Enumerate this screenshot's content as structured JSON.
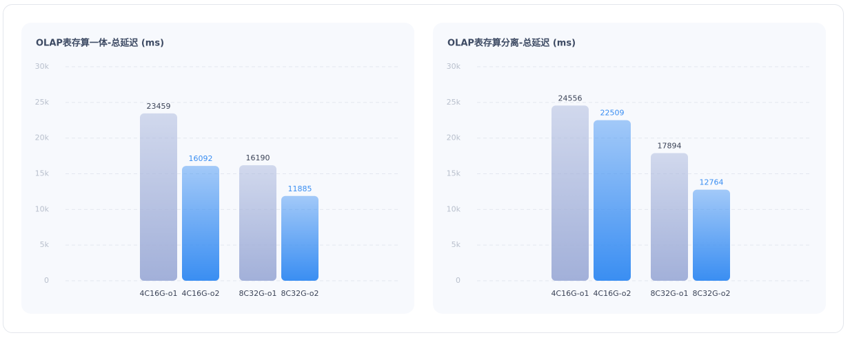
{
  "chart_data": [
    {
      "type": "bar",
      "title": "OLAP表存算一体-总延迟 (ms)",
      "categories": [
        "4C16G-o1",
        "4C16G-o2",
        "8C32G-o1",
        "8C32G-o2"
      ],
      "values": [
        23459,
        16092,
        16190,
        11885
      ],
      "colors": [
        "#a2b0d9",
        "#3a8ef2",
        "#a2b0d9",
        "#3a8ef2"
      ],
      "label_colors": [
        "#3a4256",
        "#3a8ef2",
        "#3a4256",
        "#3a8ef2"
      ],
      "ylim": [
        0,
        30000
      ],
      "yticks": [
        0,
        {
          "value": 5000,
          "label": "5k"
        },
        {
          "value": 10000,
          "label": "10k"
        },
        {
          "value": 15000,
          "label": "15k"
        },
        {
          "value": 20000,
          "label": "20k"
        },
        {
          "value": 25000,
          "label": "25k"
        },
        {
          "value": 30000,
          "label": "30k"
        }
      ],
      "grid": true
    },
    {
      "type": "bar",
      "title": "OLAP表存算分离-总延迟 (ms)",
      "categories": [
        "4C16G-o1",
        "4C16G-o2",
        "8C32G-o1",
        "8C32G-o2"
      ],
      "values": [
        24556,
        22509,
        17894,
        12764
      ],
      "colors": [
        "#a2b0d9",
        "#3a8ef2",
        "#a2b0d9",
        "#3a8ef2"
      ],
      "label_colors": [
        "#3a4256",
        "#3a8ef2",
        "#3a4256",
        "#3a8ef2"
      ],
      "ylim": [
        0,
        30000
      ],
      "yticks": [
        0,
        {
          "value": 5000,
          "label": "5k"
        },
        {
          "value": 10000,
          "label": "10k"
        },
        {
          "value": 15000,
          "label": "15k"
        },
        {
          "value": 20000,
          "label": "20k"
        },
        {
          "value": 25000,
          "label": "25k"
        },
        {
          "value": 30000,
          "label": "30k"
        }
      ],
      "grid": true
    }
  ]
}
